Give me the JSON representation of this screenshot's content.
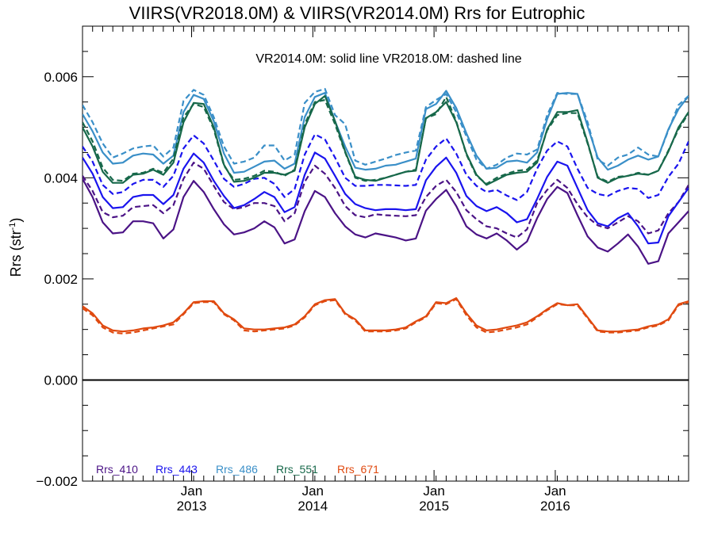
{
  "chart_data": {
    "type": "line",
    "title": "VIIRS(VR2018.0M) & VIIRS(VR2014.0M)  Rrs for Eutrophic",
    "subtitle": "VR2014.0M: solid line   VR2018.0M: dashed line",
    "ylabel": "Rrs (str",
    "ylabel_sup": "-1",
    "ylabel_suffix": ")",
    "xlim": [
      2012.1,
      2017.1
    ],
    "ylim": [
      -0.002,
      0.007
    ],
    "x_ticks": [
      {
        "value": 2013.0,
        "line1": "Jan",
        "line2": "2013"
      },
      {
        "value": 2014.0,
        "line1": "Jan",
        "line2": "2014"
      },
      {
        "value": 2015.0,
        "line1": "Jan",
        "line2": "2015"
      },
      {
        "value": 2016.0,
        "line1": "Jan",
        "line2": "2016"
      }
    ],
    "y_ticks": [
      {
        "value": -0.002,
        "label": "−0.002"
      },
      {
        "value": 0.0,
        "label": "0.000"
      },
      {
        "value": 0.002,
        "label": "0.002"
      },
      {
        "value": 0.004,
        "label": "0.004"
      },
      {
        "value": 0.006,
        "label": "0.006"
      }
    ],
    "zero_line": true,
    "grid": false,
    "legend_position": "bottom-left",
    "x": [
      2012.1,
      2012.183,
      2012.267,
      2012.35,
      2012.433,
      2012.517,
      2012.6,
      2012.683,
      2012.767,
      2012.85,
      2012.933,
      2013.017,
      2013.1,
      2013.183,
      2013.267,
      2013.35,
      2013.433,
      2013.517,
      2013.6,
      2013.683,
      2013.767,
      2013.85,
      2013.933,
      2014.017,
      2014.1,
      2014.183,
      2014.267,
      2014.35,
      2014.433,
      2014.517,
      2014.6,
      2014.683,
      2014.767,
      2014.85,
      2014.933,
      2015.017,
      2015.1,
      2015.183,
      2015.267,
      2015.35,
      2015.433,
      2015.517,
      2015.6,
      2015.683,
      2015.767,
      2015.85,
      2015.933,
      2016.017,
      2016.1,
      2016.183,
      2016.267,
      2016.35,
      2016.433,
      2016.517,
      2016.6,
      2016.683,
      2016.767,
      2016.85,
      2016.933,
      2017.017,
      2017.1
    ],
    "series": [
      {
        "name": "Rrs_410",
        "color": "#4b1386",
        "style": "solid",
        "values": [
          0.00398,
          0.00362,
          0.00312,
          0.0029,
          0.00292,
          0.00314,
          0.00314,
          0.0031,
          0.0028,
          0.00298,
          0.00362,
          0.00394,
          0.00372,
          0.00338,
          0.00308,
          0.00288,
          0.00292,
          0.003,
          0.00314,
          0.00302,
          0.0027,
          0.00278,
          0.00334,
          0.00374,
          0.00362,
          0.0033,
          0.00304,
          0.00288,
          0.00282,
          0.0029,
          0.00286,
          0.00282,
          0.00276,
          0.0028,
          0.00335,
          0.00358,
          0.00376,
          0.00344,
          0.00304,
          0.00288,
          0.0028,
          0.0029,
          0.00276,
          0.00258,
          0.00274,
          0.0032,
          0.00358,
          0.00382,
          0.0037,
          0.00326,
          0.00284,
          0.00262,
          0.00254,
          0.0027,
          0.00288,
          0.00264,
          0.0023,
          0.00235,
          0.0029,
          0.00312,
          0.00334
        ]
      },
      {
        "name": "Rrs_410",
        "color": "#4b1386",
        "style": "dashed",
        "values": [
          0.00404,
          0.00374,
          0.00332,
          0.00322,
          0.00325,
          0.00342,
          0.00344,
          0.00346,
          0.0033,
          0.00346,
          0.00398,
          0.0043,
          0.00418,
          0.00384,
          0.00352,
          0.00338,
          0.00342,
          0.0035,
          0.0035,
          0.00344,
          0.00314,
          0.0033,
          0.00392,
          0.00424,
          0.00408,
          0.0038,
          0.00344,
          0.00326,
          0.00322,
          0.00328,
          0.00326,
          0.00325,
          0.00324,
          0.00326,
          0.00362,
          0.00384,
          0.00396,
          0.00372,
          0.00336,
          0.00318,
          0.00304,
          0.003,
          0.0029,
          0.00282,
          0.00298,
          0.0035,
          0.00376,
          0.00396,
          0.0038,
          0.00348,
          0.00322,
          0.00306,
          0.003,
          0.00312,
          0.00324,
          0.00314,
          0.0029,
          0.00296,
          0.0033,
          0.00352,
          0.00386
        ]
      },
      {
        "name": "Rrs_443",
        "color": "#1a14ee",
        "style": "solid",
        "values": [
          0.0044,
          0.00408,
          0.00362,
          0.0034,
          0.00342,
          0.00362,
          0.00366,
          0.00366,
          0.00348,
          0.00366,
          0.00418,
          0.00448,
          0.0043,
          0.00394,
          0.00364,
          0.0034,
          0.00346,
          0.00358,
          0.00372,
          0.00362,
          0.00332,
          0.00342,
          0.00406,
          0.0045,
          0.00438,
          0.00404,
          0.00368,
          0.00348,
          0.0034,
          0.00336,
          0.00338,
          0.00338,
          0.00336,
          0.00338,
          0.00395,
          0.00422,
          0.0044,
          0.0041,
          0.00364,
          0.00344,
          0.00334,
          0.00342,
          0.0033,
          0.00312,
          0.00318,
          0.00358,
          0.00402,
          0.00432,
          0.00424,
          0.0038,
          0.00336,
          0.0031,
          0.00304,
          0.0032,
          0.0033,
          0.00304,
          0.0027,
          0.00272,
          0.00324,
          0.00352,
          0.0038
        ]
      },
      {
        "name": "Rrs_443",
        "color": "#1a14ee",
        "style": "dashed",
        "values": [
          0.00462,
          0.00432,
          0.00386,
          0.00368,
          0.00372,
          0.00388,
          0.00396,
          0.00396,
          0.00382,
          0.00404,
          0.00458,
          0.00484,
          0.00468,
          0.00434,
          0.00398,
          0.00382,
          0.00388,
          0.00398,
          0.004,
          0.00388,
          0.00362,
          0.00378,
          0.00446,
          0.00486,
          0.00476,
          0.0044,
          0.004,
          0.00384,
          0.00384,
          0.00386,
          0.00386,
          0.00385,
          0.00384,
          0.00386,
          0.00436,
          0.00462,
          0.00478,
          0.00448,
          0.00406,
          0.00384,
          0.00372,
          0.00376,
          0.00365,
          0.00356,
          0.00372,
          0.00418,
          0.00454,
          0.00472,
          0.00462,
          0.00418,
          0.0038,
          0.00368,
          0.00364,
          0.00374,
          0.0038,
          0.00378,
          0.0036,
          0.00366,
          0.00402,
          0.00428,
          0.00472
        ]
      },
      {
        "name": "Rrs_486",
        "color": "#3a8fc8",
        "style": "solid",
        "values": [
          0.00526,
          0.00492,
          0.0045,
          0.00428,
          0.0043,
          0.00444,
          0.00448,
          0.00446,
          0.00428,
          0.00444,
          0.0053,
          0.00564,
          0.00556,
          0.00512,
          0.00448,
          0.0041,
          0.00412,
          0.00422,
          0.00432,
          0.00434,
          0.00418,
          0.00428,
          0.0052,
          0.0056,
          0.00568,
          0.00512,
          0.00462,
          0.0042,
          0.00416,
          0.00418,
          0.00424,
          0.00426,
          0.00432,
          0.00438,
          0.00536,
          0.00546,
          0.00572,
          0.00538,
          0.00488,
          0.00444,
          0.00418,
          0.0042,
          0.00432,
          0.00434,
          0.0043,
          0.0045,
          0.00516,
          0.00566,
          0.00568,
          0.00566,
          0.00502,
          0.0044,
          0.00416,
          0.00424,
          0.00436,
          0.00444,
          0.00436,
          0.00442,
          0.00496,
          0.00536,
          0.00562
        ]
      },
      {
        "name": "Rrs_486",
        "color": "#3a8fc8",
        "style": "dashed",
        "values": [
          0.00544,
          0.0051,
          0.00468,
          0.0044,
          0.00448,
          0.00458,
          0.00462,
          0.00464,
          0.00442,
          0.0046,
          0.00552,
          0.00574,
          0.00564,
          0.0052,
          0.00462,
          0.00428,
          0.00432,
          0.0044,
          0.00464,
          0.00464,
          0.00434,
          0.00446,
          0.00548,
          0.0057,
          0.00576,
          0.00524,
          0.00506,
          0.00434,
          0.00426,
          0.00432,
          0.00438,
          0.00445,
          0.0045,
          0.00454,
          0.0054,
          0.00554,
          0.00566,
          0.0053,
          0.00482,
          0.00436,
          0.00418,
          0.00426,
          0.0044,
          0.00448,
          0.00446,
          0.00456,
          0.00524,
          0.00568,
          0.00566,
          0.00566,
          0.0051,
          0.00436,
          0.00424,
          0.0044,
          0.00446,
          0.0046,
          0.00446,
          0.00442,
          0.00494,
          0.00544,
          0.00562
        ]
      },
      {
        "name": "Rrs_551",
        "color": "#17684a",
        "style": "solid",
        "values": [
          0.005,
          0.00462,
          0.00412,
          0.0039,
          0.0039,
          0.00406,
          0.00408,
          0.00416,
          0.00406,
          0.0043,
          0.0051,
          0.00548,
          0.00546,
          0.005,
          0.00426,
          0.00392,
          0.00394,
          0.004,
          0.0041,
          0.0041,
          0.00406,
          0.00414,
          0.005,
          0.00546,
          0.00562,
          0.00512,
          0.00452,
          0.00402,
          0.00396,
          0.00394,
          0.004,
          0.00406,
          0.00412,
          0.00414,
          0.00518,
          0.0053,
          0.0055,
          0.0051,
          0.00448,
          0.00406,
          0.00386,
          0.00396,
          0.00406,
          0.0041,
          0.00412,
          0.0043,
          0.00496,
          0.0053,
          0.0053,
          0.00534,
          0.0047,
          0.004,
          0.0039,
          0.004,
          0.00404,
          0.00408,
          0.00406,
          0.00414,
          0.00452,
          0.005,
          0.0053
        ]
      },
      {
        "name": "Rrs_551",
        "color": "#17684a",
        "style": "dashed",
        "values": [
          0.0051,
          0.00472,
          0.0042,
          0.00396,
          0.00394,
          0.00408,
          0.0041,
          0.00418,
          0.0041,
          0.00438,
          0.0052,
          0.00546,
          0.0054,
          0.00496,
          0.00424,
          0.00396,
          0.00398,
          0.00404,
          0.00414,
          0.00412,
          0.00404,
          0.00416,
          0.00506,
          0.0055,
          0.00554,
          0.00506,
          0.0045,
          0.004,
          0.00394,
          0.00396,
          0.004,
          0.00406,
          0.00412,
          0.00416,
          0.00518,
          0.00526,
          0.0056,
          0.00512,
          0.00446,
          0.00404,
          0.00388,
          0.004,
          0.00408,
          0.00414,
          0.00416,
          0.00434,
          0.00494,
          0.00524,
          0.00528,
          0.00528,
          0.00468,
          0.00402,
          0.00392,
          0.00402,
          0.00404,
          0.0041,
          0.00406,
          0.00414,
          0.00454,
          0.00496,
          0.00528
        ]
      },
      {
        "name": "Rrs_671",
        "color": "#e04a10",
        "style": "solid",
        "values": [
          0.00146,
          0.00132,
          0.00108,
          0.00098,
          0.00096,
          0.00098,
          0.00102,
          0.00104,
          0.00108,
          0.00114,
          0.00132,
          0.00154,
          0.00156,
          0.00156,
          0.00132,
          0.0012,
          0.00102,
          0.001,
          0.001,
          0.00102,
          0.00104,
          0.0011,
          0.00126,
          0.0015,
          0.00158,
          0.0016,
          0.00132,
          0.0012,
          0.00098,
          0.00098,
          0.00098,
          0.001,
          0.00104,
          0.00116,
          0.00126,
          0.00154,
          0.00152,
          0.00162,
          0.00132,
          0.00108,
          0.00098,
          0.001,
          0.00104,
          0.00108,
          0.00114,
          0.00126,
          0.0014,
          0.00152,
          0.00148,
          0.0015,
          0.00124,
          0.00098,
          0.00096,
          0.00096,
          0.00098,
          0.001,
          0.00106,
          0.0011,
          0.0012,
          0.0015,
          0.00156
        ]
      },
      {
        "name": "Rrs_671",
        "color": "#e04a10",
        "style": "dashed",
        "values": [
          0.00142,
          0.00128,
          0.00104,
          0.00094,
          0.00092,
          0.00094,
          0.00098,
          0.00102,
          0.00106,
          0.0011,
          0.0013,
          0.00152,
          0.00154,
          0.00154,
          0.0013,
          0.00118,
          0.00098,
          0.00096,
          0.00098,
          0.001,
          0.00102,
          0.00108,
          0.00124,
          0.00148,
          0.00156,
          0.00158,
          0.0013,
          0.00118,
          0.00096,
          0.00096,
          0.00096,
          0.00098,
          0.00102,
          0.00114,
          0.00124,
          0.00152,
          0.0015,
          0.0016,
          0.00128,
          0.00104,
          0.00094,
          0.00096,
          0.001,
          0.00104,
          0.0011,
          0.00124,
          0.00138,
          0.0015,
          0.00148,
          0.00148,
          0.00122,
          0.00096,
          0.00094,
          0.00094,
          0.00096,
          0.00098,
          0.00104,
          0.00108,
          0.00118,
          0.00148,
          0.00154
        ]
      }
    ],
    "legend": [
      {
        "label": "Rrs_410",
        "color": "#4b1386"
      },
      {
        "label": "Rrs_443",
        "color": "#1a14ee"
      },
      {
        "label": "Rrs_486",
        "color": "#3a8fc8"
      },
      {
        "label": "Rrs_551",
        "color": "#17684a"
      },
      {
        "label": "Rrs_671",
        "color": "#e04a10"
      }
    ]
  }
}
